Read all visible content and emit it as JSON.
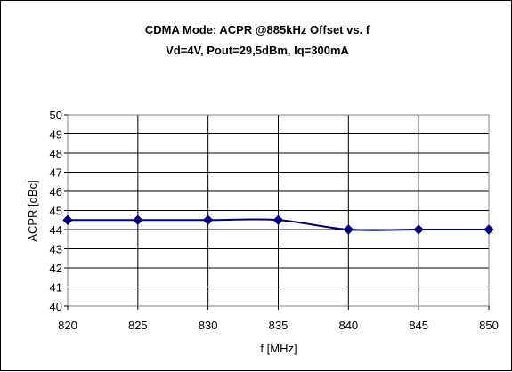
{
  "chart_data": {
    "type": "line",
    "title": "CDMA Mode: ACPR @885kHz Offset vs. f",
    "subtitle": "Vd=4V, Pout=29,5dBm, Iq=300mA",
    "xlabel": "f [MHz]",
    "ylabel": "ACPR [dBc]",
    "xlim": [
      820,
      850
    ],
    "ylim": [
      40,
      50
    ],
    "x_ticks": [
      820,
      825,
      830,
      835,
      840,
      845,
      850
    ],
    "y_ticks": [
      40,
      41,
      42,
      43,
      44,
      45,
      46,
      47,
      48,
      49,
      50
    ],
    "grid": true,
    "legend": "none",
    "series": [
      {
        "x": [
          820,
          825,
          830,
          835,
          840,
          845,
          850
        ],
        "y": [
          44.5,
          44.5,
          44.5,
          44.5,
          44.0,
          44.0,
          44.0
        ],
        "color": "#000080",
        "marker": "diamond"
      }
    ]
  }
}
